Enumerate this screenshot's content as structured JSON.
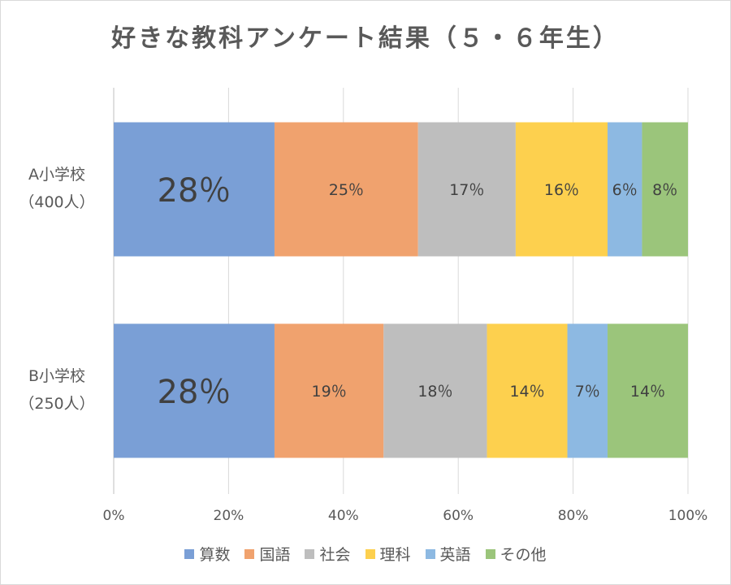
{
  "chart_data": {
    "type": "bar",
    "orientation": "horizontal",
    "stacked": "percent",
    "title": "好きな教科アンケート結果（５・６年生）",
    "categories": [
      {
        "name": "A小学校",
        "sub": "（400人）"
      },
      {
        "name": "B小学校",
        "sub": "（250人）"
      }
    ],
    "series": [
      {
        "name": "算数",
        "color": "#7A9FD6",
        "values": [
          28,
          28
        ],
        "labels": [
          "28％",
          "28％"
        ]
      },
      {
        "name": "国語",
        "color": "#F0A26E",
        "values": [
          25,
          19
        ],
        "labels": [
          "25％",
          "19％"
        ]
      },
      {
        "name": "社会",
        "color": "#BEBEBE",
        "values": [
          17,
          18
        ],
        "labels": [
          "17％",
          "18％"
        ]
      },
      {
        "name": "理科",
        "color": "#FDD04E",
        "values": [
          16,
          14
        ],
        "labels": [
          "16％",
          "14％"
        ]
      },
      {
        "name": "英語",
        "color": "#8DB9E2",
        "values": [
          6,
          7
        ],
        "labels": [
          "6％",
          "7％"
        ]
      },
      {
        "name": "その他",
        "color": "#9BC57B",
        "values": [
          8,
          14
        ],
        "labels": [
          "8％",
          "14％"
        ]
      }
    ],
    "xlim": [
      0,
      100
    ],
    "ticks": [
      "0%",
      "20%",
      "40%",
      "60%",
      "80%",
      "100%"
    ],
    "grid": true,
    "legend_position": "bottom"
  }
}
